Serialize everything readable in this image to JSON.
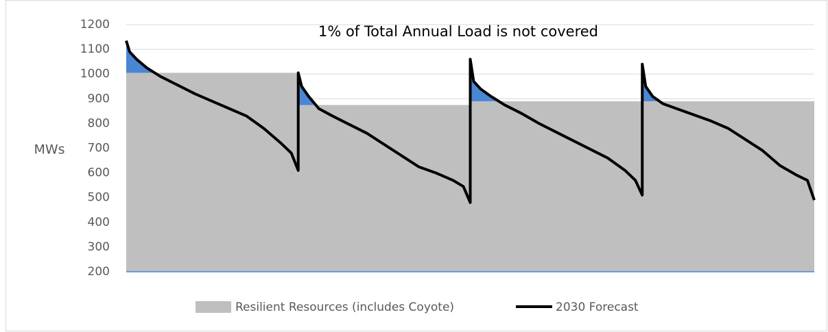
{
  "chart_data": {
    "type": "area_line",
    "annotation": "1% of Total Annual Load is not covered",
    "y_label": "MWs",
    "xlim": [
      0,
      100
    ],
    "ylim": [
      200,
      1200
    ],
    "yticks": [
      200,
      300,
      400,
      500,
      600,
      700,
      800,
      900,
      1000,
      1100,
      1200
    ],
    "grid": true,
    "series": [
      {
        "name": "Resilient Resources (includes Coyote)",
        "kind": "area",
        "color": "#bfbfbf",
        "x": [
          0,
          25,
          25,
          50,
          50,
          75,
          75,
          100
        ],
        "values": [
          1005,
          1005,
          875,
          875,
          890,
          890,
          890,
          890
        ]
      },
      {
        "name": "2030 Forecast",
        "kind": "line",
        "color": "#000000",
        "fill_color": "#4a86d4",
        "x": [
          0,
          0.5,
          1.5,
          3,
          5,
          7.5,
          10,
          12.5,
          15,
          17.5,
          20,
          22.5,
          24,
          25,
          25,
          25.5,
          26.5,
          28,
          30,
          32.5,
          35,
          37.5,
          40,
          42.5,
          45,
          47.5,
          49,
          50,
          50,
          50.5,
          51.5,
          53,
          55,
          57.5,
          60,
          62.5,
          65,
          67.5,
          70,
          72.5,
          74,
          75,
          75,
          75.5,
          76.5,
          78,
          80,
          82.5,
          85,
          87.5,
          90,
          92.5,
          95,
          97.5,
          99,
          100
        ],
        "values": [
          1135,
          1090,
          1060,
          1025,
          990,
          955,
          920,
          890,
          860,
          830,
          780,
          720,
          680,
          610,
          1005,
          950,
          910,
          860,
          830,
          795,
          760,
          715,
          670,
          625,
          600,
          570,
          545,
          480,
          1060,
          970,
          940,
          910,
          875,
          840,
          800,
          765,
          730,
          695,
          660,
          610,
          570,
          510,
          1040,
          950,
          910,
          880,
          860,
          835,
          810,
          780,
          735,
          690,
          630,
          590,
          570,
          490
        ]
      }
    ]
  }
}
